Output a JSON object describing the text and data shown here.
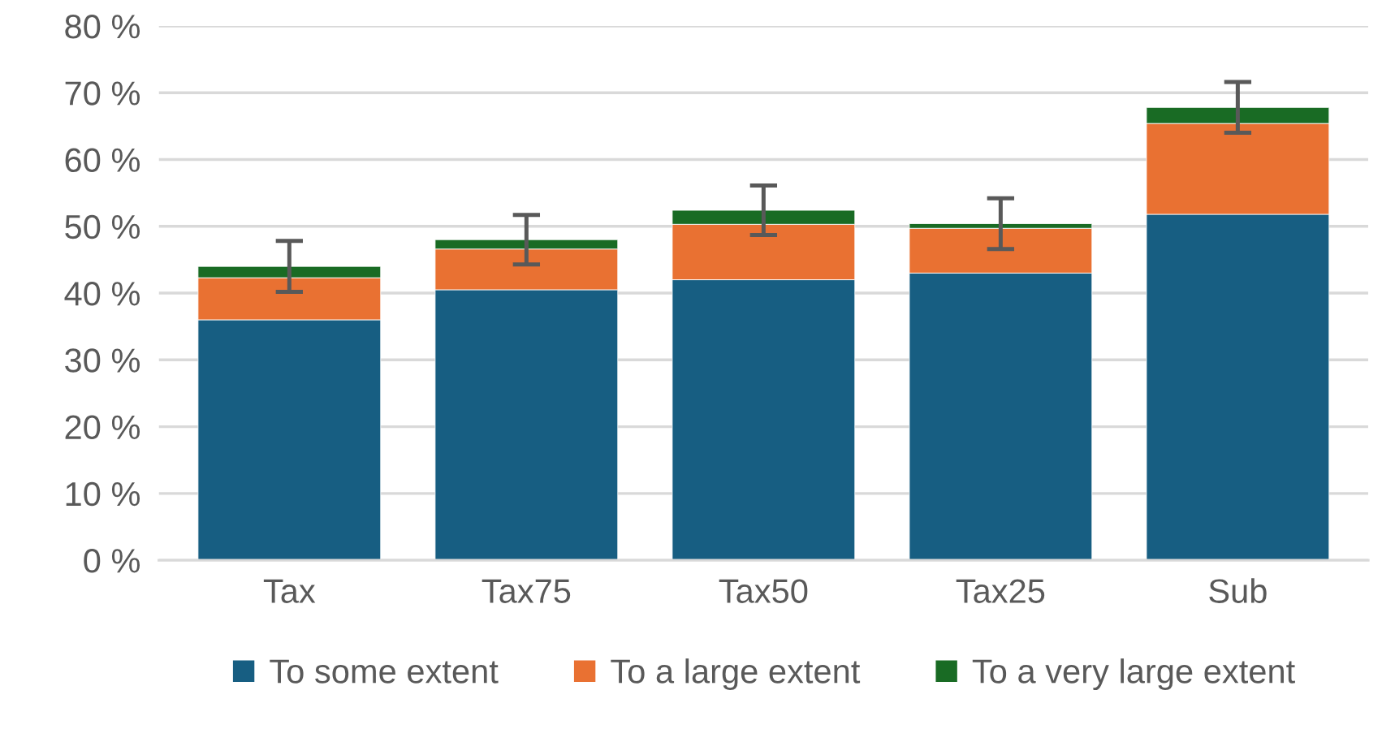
{
  "chart_data": {
    "type": "bar",
    "stacked": true,
    "categories": [
      "Tax",
      "Tax75",
      "Tax50",
      "Tax25",
      "Sub"
    ],
    "series": [
      {
        "name": "To some extent",
        "color": "#175e82",
        "values": [
          36.0,
          40.5,
          42.0,
          43.0,
          51.8
        ]
      },
      {
        "name": "To a large extent",
        "color": "#e97132",
        "values": [
          6.3,
          6.1,
          8.3,
          6.7,
          13.6
        ]
      },
      {
        "name": "To a very large extent",
        "color": "#196b24",
        "values": [
          1.7,
          1.4,
          2.1,
          0.7,
          2.4
        ],
        "errors": [
          3.8,
          3.7,
          3.7,
          3.8,
          3.8
        ]
      }
    ],
    "ylim": [
      0,
      80
    ],
    "yticks": [
      {
        "value": 0,
        "label": "0 %"
      },
      {
        "value": 10,
        "label": "10 %"
      },
      {
        "value": 20,
        "label": "20 %"
      },
      {
        "value": 30,
        "label": "30 %"
      },
      {
        "value": 40,
        "label": "40 %"
      },
      {
        "value": 50,
        "label": "50 %"
      },
      {
        "value": 60,
        "label": "60 %"
      },
      {
        "value": 70,
        "label": "70 %"
      },
      {
        "value": 80,
        "label": "80 %"
      }
    ],
    "grid": "y",
    "legend": "bottom"
  }
}
